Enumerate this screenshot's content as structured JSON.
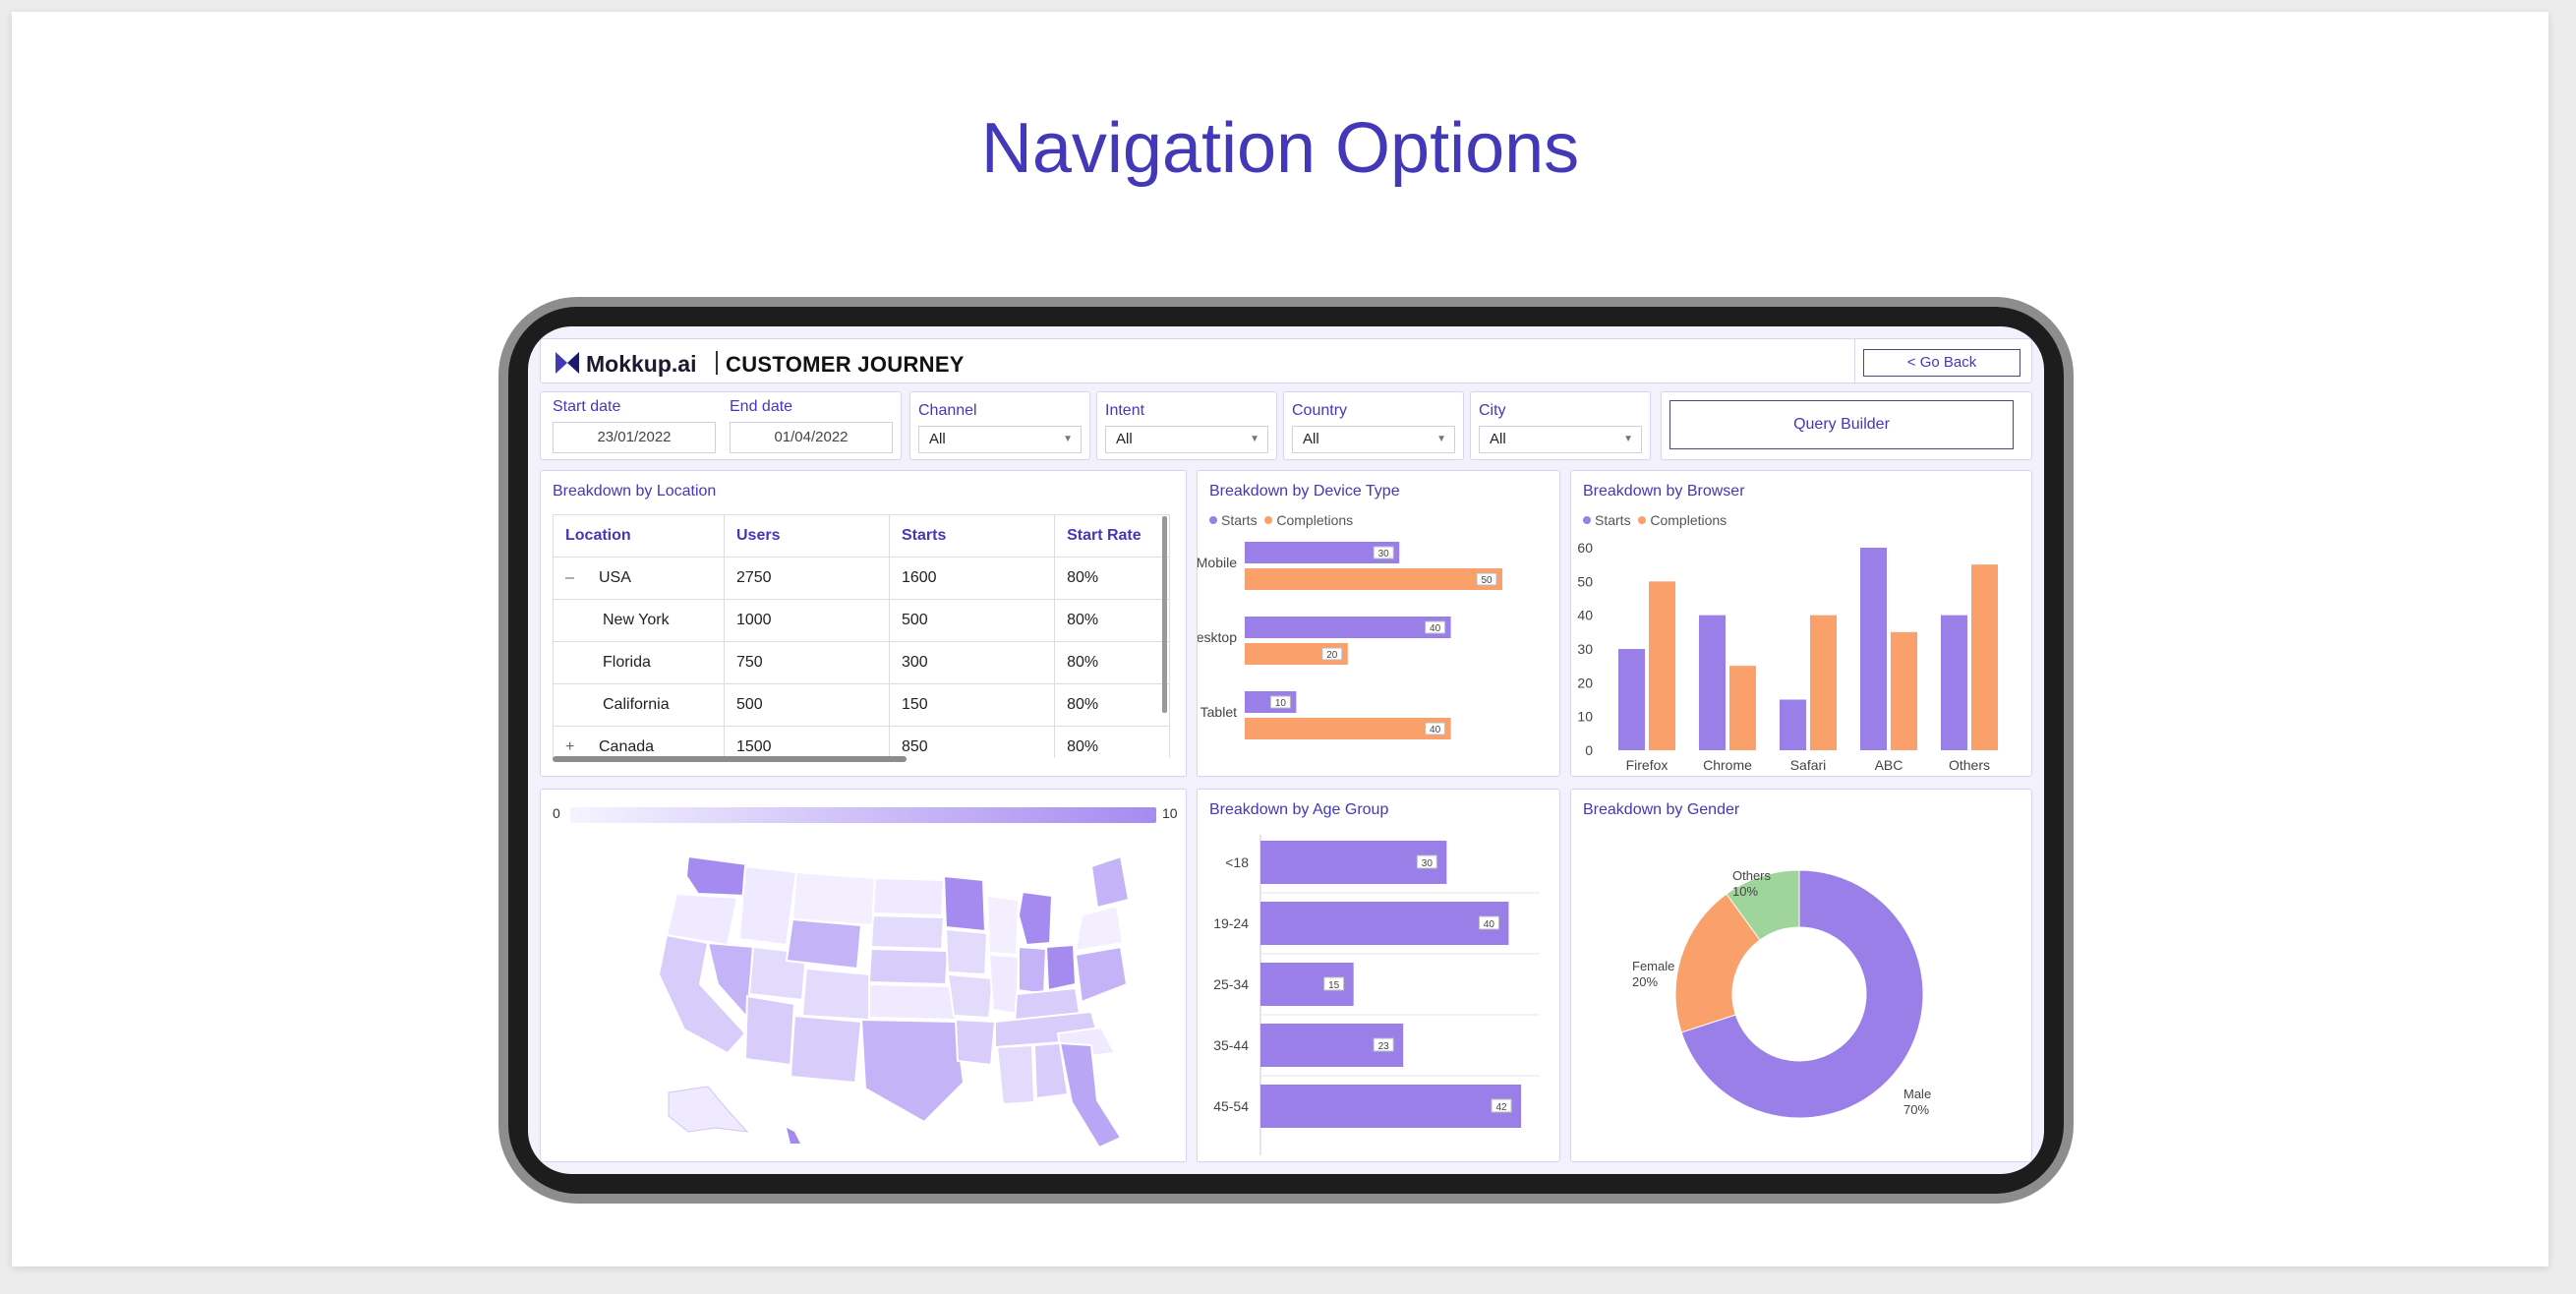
{
  "slide_title": "Navigation Options",
  "header": {
    "brand": "Mokkup.ai",
    "app_title": "CUSTOMER JOURNEY",
    "go_back": "< Go Back"
  },
  "filters": {
    "start_label": "Start date",
    "start_value": "23/01/2022",
    "end_label": "End date",
    "end_value": "01/04/2022",
    "channel_label": "Channel",
    "channel_value": "All",
    "intent_label": "Intent",
    "intent_value": "All",
    "country_label": "Country",
    "country_value": "All",
    "city_label": "City",
    "city_value": "All",
    "query_builder": "Query Builder"
  },
  "location": {
    "title": "Breakdown by Location",
    "columns": [
      "Location",
      "Users",
      "Starts",
      "Start Rate"
    ],
    "rows": [
      {
        "toggle": "–",
        "name": "USA",
        "users": "2750",
        "starts": "1600",
        "rate": "80%"
      },
      {
        "toggle": "",
        "name": "New York",
        "users": "1000",
        "starts": "500",
        "rate": "80%"
      },
      {
        "toggle": "",
        "name": "Florida",
        "users": "750",
        "starts": "300",
        "rate": "80%"
      },
      {
        "toggle": "",
        "name": "California",
        "users": "500",
        "starts": "150",
        "rate": "80%"
      },
      {
        "toggle": "+",
        "name": "Canada",
        "users": "1500",
        "starts": "850",
        "rate": "80%"
      }
    ]
  },
  "map": {
    "scale_min": "0",
    "scale_max": "10"
  },
  "colors": {
    "accent": "#4338b8",
    "starts": "#9b7fe8",
    "completions": "#f9a06b",
    "others": "#9fd49a"
  },
  "chart_data": [
    {
      "type": "bar",
      "orientation": "horizontal",
      "title": "Breakdown by Device Type",
      "categories": [
        "Mobile",
        "Desktop",
        "Tablet"
      ],
      "series": [
        {
          "name": "Starts",
          "values": [
            30,
            40,
            10
          ]
        },
        {
          "name": "Completions",
          "values": [
            50,
            20,
            40
          ]
        }
      ],
      "xlim": [
        0,
        50
      ]
    },
    {
      "type": "bar",
      "title": "Breakdown by Browser",
      "categories": [
        "Firefox",
        "Chrome",
        "Safari",
        "ABC",
        "Others"
      ],
      "series": [
        {
          "name": "Starts",
          "values": [
            30,
            40,
            15,
            60,
            40
          ]
        },
        {
          "name": "Completions",
          "values": [
            50,
            25,
            40,
            35,
            55
          ]
        }
      ],
      "ylim": [
        0,
        60
      ],
      "yticks": [
        "0",
        "10",
        "20",
        "30",
        "40",
        "50",
        "60"
      ]
    },
    {
      "type": "bar",
      "orientation": "horizontal",
      "title": "Breakdown by Age Group",
      "categories": [
        "<18",
        "19-24",
        "25-34",
        "35-44",
        "45-54"
      ],
      "values": [
        30,
        40,
        15,
        23,
        42
      ],
      "xlim": [
        0,
        45
      ]
    },
    {
      "type": "pie",
      "title": "Breakdown by Gender",
      "categories": [
        "Male",
        "Female",
        "Others"
      ],
      "values": [
        70,
        20,
        10
      ],
      "labels": [
        "70%",
        "20%",
        "10%"
      ]
    }
  ]
}
